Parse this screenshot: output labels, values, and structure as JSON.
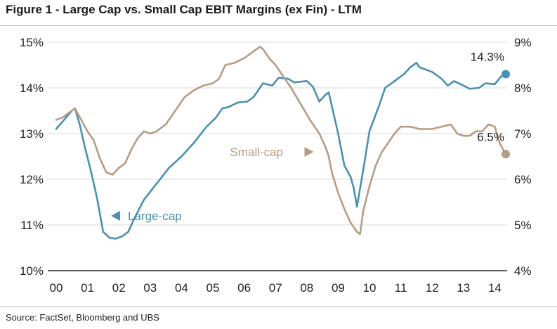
{
  "title": "Figure 1 - Large Cap vs. Small Cap EBIT Margins (ex Fin) - LTM",
  "source": "Source:  FactSet, Bloomberg and UBS",
  "chart_data": {
    "type": "line",
    "title": "Figure 1 - Large Cap vs. Small Cap EBIT Margins (ex Fin) - LTM",
    "xlabel": "",
    "ylabel": "",
    "xlim": [
      0,
      14.45
    ],
    "ylim_left": [
      10,
      15
    ],
    "ylim_right": [
      4,
      9
    ],
    "x_ticks": [
      "00",
      "01",
      "02",
      "03",
      "04",
      "05",
      "06",
      "07",
      "08",
      "09",
      "10",
      "11",
      "12",
      "13",
      "14"
    ],
    "y_left_ticks": [
      "10%",
      "11%",
      "12%",
      "13%",
      "14%",
      "15%"
    ],
    "y_right_ticks": [
      "4%",
      "5%",
      "6%",
      "7%",
      "8%",
      "9%"
    ],
    "grid": "horizontal",
    "series": [
      {
        "name": "Large-cap",
        "axis": "left",
        "color": "#4a90b0",
        "points": [
          [
            0.0,
            13.1
          ],
          [
            0.25,
            13.3
          ],
          [
            0.5,
            13.5
          ],
          [
            0.6,
            13.55
          ],
          [
            0.75,
            13.2
          ],
          [
            0.9,
            12.75
          ],
          [
            1.1,
            12.2
          ],
          [
            1.3,
            11.6
          ],
          [
            1.5,
            10.85
          ],
          [
            1.7,
            10.72
          ],
          [
            1.9,
            10.7
          ],
          [
            2.1,
            10.75
          ],
          [
            2.3,
            10.85
          ],
          [
            2.5,
            11.15
          ],
          [
            2.8,
            11.55
          ],
          [
            3.2,
            11.9
          ],
          [
            3.6,
            12.25
          ],
          [
            4.0,
            12.5
          ],
          [
            4.4,
            12.8
          ],
          [
            4.8,
            13.15
          ],
          [
            5.1,
            13.35
          ],
          [
            5.3,
            13.55
          ],
          [
            5.5,
            13.58
          ],
          [
            5.8,
            13.68
          ],
          [
            6.1,
            13.7
          ],
          [
            6.3,
            13.8
          ],
          [
            6.5,
            14.0
          ],
          [
            6.6,
            14.1
          ],
          [
            6.9,
            14.05
          ],
          [
            7.1,
            14.22
          ],
          [
            7.4,
            14.2
          ],
          [
            7.6,
            14.12
          ],
          [
            8.0,
            14.15
          ],
          [
            8.2,
            14.02
          ],
          [
            8.4,
            13.7
          ],
          [
            8.6,
            13.85
          ],
          [
            8.7,
            13.9
          ],
          [
            8.8,
            13.6
          ],
          [
            9.0,
            13.0
          ],
          [
            9.2,
            12.3
          ],
          [
            9.4,
            12.05
          ],
          [
            9.5,
            11.8
          ],
          [
            9.6,
            11.4
          ],
          [
            9.8,
            12.2
          ],
          [
            10.0,
            13.05
          ],
          [
            10.3,
            13.6
          ],
          [
            10.5,
            14.0
          ],
          [
            10.8,
            14.15
          ],
          [
            11.1,
            14.3
          ],
          [
            11.3,
            14.45
          ],
          [
            11.5,
            14.55
          ],
          [
            11.6,
            14.45
          ],
          [
            11.8,
            14.4
          ],
          [
            12.0,
            14.35
          ],
          [
            12.3,
            14.2
          ],
          [
            12.5,
            14.05
          ],
          [
            12.7,
            14.15
          ],
          [
            13.0,
            14.05
          ],
          [
            13.2,
            13.98
          ],
          [
            13.5,
            14.0
          ],
          [
            13.7,
            14.1
          ],
          [
            14.0,
            14.08
          ],
          [
            14.2,
            14.25
          ],
          [
            14.35,
            14.3
          ]
        ]
      },
      {
        "name": "Small-cap",
        "axis": "right",
        "color": "#b69c84",
        "points": [
          [
            0.0,
            7.3
          ],
          [
            0.2,
            7.35
          ],
          [
            0.4,
            7.45
          ],
          [
            0.6,
            7.55
          ],
          [
            0.8,
            7.3
          ],
          [
            1.0,
            7.05
          ],
          [
            1.2,
            6.85
          ],
          [
            1.4,
            6.45
          ],
          [
            1.6,
            6.15
          ],
          [
            1.8,
            6.1
          ],
          [
            2.0,
            6.25
          ],
          [
            2.2,
            6.35
          ],
          [
            2.4,
            6.65
          ],
          [
            2.6,
            6.9
          ],
          [
            2.8,
            7.05
          ],
          [
            3.0,
            7.0
          ],
          [
            3.2,
            7.05
          ],
          [
            3.5,
            7.2
          ],
          [
            3.8,
            7.5
          ],
          [
            4.1,
            7.8
          ],
          [
            4.4,
            7.95
          ],
          [
            4.7,
            8.05
          ],
          [
            5.0,
            8.1
          ],
          [
            5.2,
            8.2
          ],
          [
            5.4,
            8.5
          ],
          [
            5.7,
            8.55
          ],
          [
            6.0,
            8.65
          ],
          [
            6.2,
            8.75
          ],
          [
            6.4,
            8.85
          ],
          [
            6.5,
            8.9
          ],
          [
            6.6,
            8.85
          ],
          [
            6.8,
            8.65
          ],
          [
            7.0,
            8.5
          ],
          [
            7.2,
            8.3
          ],
          [
            7.5,
            8.0
          ],
          [
            7.8,
            7.65
          ],
          [
            8.1,
            7.3
          ],
          [
            8.4,
            7.0
          ],
          [
            8.6,
            6.7
          ],
          [
            8.7,
            6.5
          ],
          [
            8.8,
            6.15
          ],
          [
            9.0,
            5.7
          ],
          [
            9.2,
            5.35
          ],
          [
            9.4,
            5.05
          ],
          [
            9.6,
            4.85
          ],
          [
            9.7,
            4.8
          ],
          [
            9.8,
            5.3
          ],
          [
            10.0,
            5.85
          ],
          [
            10.2,
            6.3
          ],
          [
            10.4,
            6.6
          ],
          [
            10.6,
            6.8
          ],
          [
            10.8,
            7.0
          ],
          [
            11.0,
            7.15
          ],
          [
            11.3,
            7.15
          ],
          [
            11.6,
            7.1
          ],
          [
            12.0,
            7.1
          ],
          [
            12.3,
            7.15
          ],
          [
            12.6,
            7.2
          ],
          [
            12.8,
            7.0
          ],
          [
            13.0,
            6.95
          ],
          [
            13.2,
            6.95
          ],
          [
            13.4,
            7.05
          ],
          [
            13.6,
            7.05
          ],
          [
            13.8,
            7.2
          ],
          [
            14.0,
            7.15
          ],
          [
            14.15,
            6.8
          ],
          [
            14.35,
            6.55
          ]
        ]
      }
    ],
    "end_markers": [
      {
        "series": "Large-cap",
        "x": 14.35,
        "y": 14.3,
        "label": "14.3%"
      },
      {
        "series": "Small-cap",
        "x": 14.35,
        "y": 6.55,
        "label": "6.5%"
      }
    ],
    "annotations": [
      {
        "text": "Large-cap",
        "arrow": "left",
        "x": 1.75,
        "y": 11.2,
        "axis": "left",
        "color": "#4a90b0"
      },
      {
        "text": "Small-cap",
        "arrow": "right",
        "x": 5.55,
        "y": 6.6,
        "axis": "right",
        "color": "#b69c84"
      }
    ]
  }
}
